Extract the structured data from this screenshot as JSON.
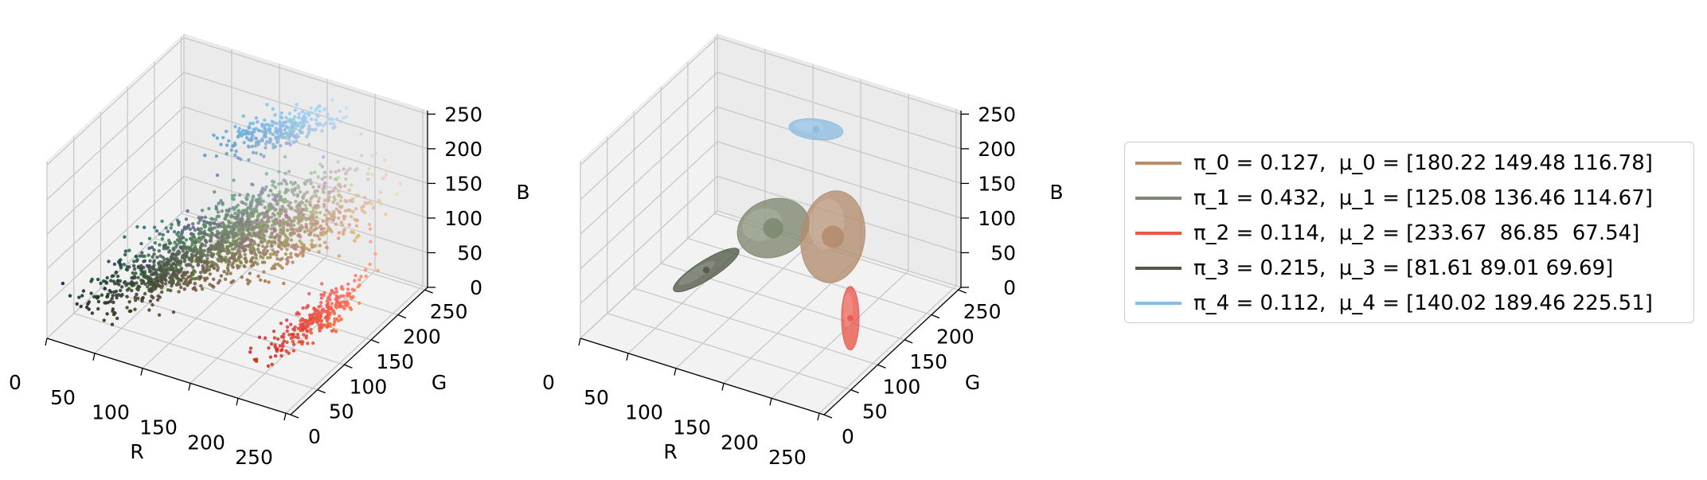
{
  "chart_data": [
    {
      "type": "scatter3d",
      "xlabel": "R",
      "ylabel": "G",
      "zlabel": "B",
      "xticks": [
        "0",
        "50",
        "100",
        "150",
        "200",
        "250"
      ],
      "yticks": [
        "0",
        "50",
        "100",
        "150",
        "200",
        "250"
      ],
      "zticks": [
        "0",
        "50",
        "100",
        "150",
        "200",
        "250"
      ],
      "xlim": [
        0,
        255
      ],
      "ylim": [
        0,
        255
      ],
      "zlim": [
        0,
        255
      ],
      "grid": true,
      "clusters": [
        {
          "mean": [
            180.22,
            149.48,
            116.78
          ],
          "weight": 0.127,
          "color": "#b48c6e"
        },
        {
          "mean": [
            125.08,
            136.46,
            114.67
          ],
          "weight": 0.432,
          "color": "#7d8870"
        },
        {
          "mean": [
            233.67,
            86.85,
            67.54
          ],
          "weight": 0.114,
          "color": "#e9574a"
        },
        {
          "mean": [
            81.61,
            89.01,
            69.69
          ],
          "weight": 0.215,
          "color": "#515946"
        },
        {
          "mean": [
            140.02,
            189.46,
            225.51
          ],
          "weight": 0.112,
          "color": "#8cbde1"
        }
      ]
    },
    {
      "type": "ellipsoid3d",
      "xlabel": "R",
      "ylabel": "G",
      "zlabel": "B",
      "xticks": [
        "0",
        "50",
        "100",
        "150",
        "200",
        "250"
      ],
      "yticks": [
        "0",
        "50",
        "100",
        "150",
        "200",
        "250"
      ],
      "zticks": [
        "0",
        "50",
        "100",
        "150",
        "200",
        "250"
      ],
      "xlim": [
        0,
        255
      ],
      "ylim": [
        0,
        255
      ],
      "zlim": [
        0,
        255
      ],
      "grid": true,
      "legend_position": "right",
      "series": [
        {
          "label": "π_0 = 0.127,  μ_0 = [180.22 149.48 116.78]",
          "color": "#b48c6e",
          "pi": 0.127,
          "mean": [
            180.22,
            149.48,
            116.78
          ]
        },
        {
          "label": "π_1 = 0.432,  μ_1 = [125.08 136.46 114.67]",
          "color": "#7d8870",
          "pi": 0.432,
          "mean": [
            125.08,
            136.46,
            114.67
          ]
        },
        {
          "label": "π_2 = 0.114,  μ_2 = [233.67  86.85  67.54]",
          "color": "#e9574a",
          "pi": 0.114,
          "mean": [
            233.67,
            86.85,
            67.54
          ]
        },
        {
          "label": "π_3 = 0.215,  μ_3 = [81.61 89.01 69.69]",
          "color": "#515946",
          "pi": 0.215,
          "mean": [
            81.61,
            89.01,
            69.69
          ]
        },
        {
          "label": "π_4 = 0.112,  μ_4 = [140.02 189.46 225.51]",
          "color": "#8cbde1",
          "pi": 0.112,
          "mean": [
            140.02,
            189.46,
            225.51
          ]
        }
      ]
    }
  ]
}
